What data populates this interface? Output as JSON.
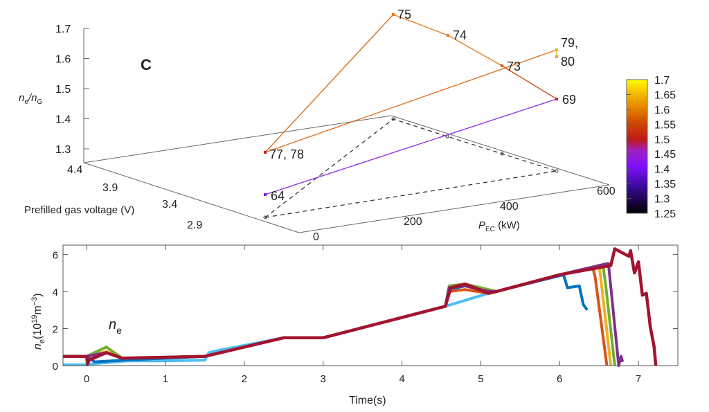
{
  "chart_data": [
    {
      "type": "scatter3d",
      "panel_label": "C",
      "zlabel": {
        "main": "n",
        "sub1": "e",
        "slash": "/n",
        "sub2": "G"
      },
      "xlabel": {
        "main": "P",
        "sub": "EC",
        "unit": " (kW)"
      },
      "ylabel": "Prefilled gas voltage (V)",
      "z_ticks": [
        "1.7",
        "1.6",
        "1.5",
        "1.4",
        "1.3"
      ],
      "y_ticks": [
        "4.4",
        "3.9",
        "3.4",
        "2.9"
      ],
      "x_ticks": [
        "0",
        "200",
        "400",
        "600"
      ],
      "points": [
        {
          "label": "75",
          "ne_nG": 1.6,
          "color": "#e07820"
        },
        {
          "label": "74",
          "ne_nG": 1.59,
          "color": "#e07820"
        },
        {
          "label": "73",
          "ne_nG": 1.54,
          "color": "#d85a10"
        },
        {
          "label": "69",
          "ne_nG": 1.49,
          "color": "#c8201c"
        },
        {
          "label": "79,",
          "ne_nG": 1.65,
          "color": "#f0b020"
        },
        {
          "label": "80",
          "ne_nG": 1.63,
          "color": "#f0a020"
        },
        {
          "label": "77, 78",
          "ne_nG": 1.47,
          "color": "#c8201c"
        },
        {
          "label": "64",
          "ne_nG": 1.33,
          "color": "#8020e0"
        }
      ],
      "colorbar": {
        "ticks": [
          "1.7",
          "1.65",
          "1.6",
          "1.55",
          "1.5",
          "1.45",
          "1.4",
          "1.35",
          "1.3",
          "1.25"
        ],
        "range": [
          1.25,
          1.7
        ]
      }
    },
    {
      "type": "line",
      "annotation": {
        "main": "n",
        "sub": "e"
      },
      "xlabel": "Time(s)",
      "ylabel": {
        "main": "n",
        "sub": "e",
        "rest": "(10",
        "sup1": "19",
        "unit": "m",
        "sup2": "−3",
        "close": ")"
      },
      "xlim": [
        -0.3,
        7.5
      ],
      "ylim": [
        0,
        6.5
      ],
      "x_ticks": [
        "0",
        "1",
        "2",
        "3",
        "4",
        "5",
        "6",
        "7"
      ],
      "y_ticks": [
        "0",
        "2",
        "4",
        "6"
      ],
      "series": [
        {
          "name": "light-blue",
          "color": "#4DBEEE",
          "x": [
            -0.3,
            0,
            0.1,
            0.5,
            1.0,
            1.5,
            1.55,
            1.65,
            2.5,
            3.0,
            4.55,
            5.1,
            5.3,
            6.0,
            6.05
          ],
          "y": [
            0.05,
            0.05,
            0.1,
            0.25,
            0.25,
            0.3,
            0.7,
            0.8,
            1.5,
            1.5,
            3.2,
            3.9,
            4.1,
            4.9,
            4.9
          ]
        },
        {
          "name": "blue",
          "color": "#0072BD",
          "x": [
            -0.3,
            0,
            0.1,
            0.5,
            1.0,
            1.5,
            2.5,
            3.0,
            4.55,
            4.6,
            4.8,
            5.1,
            5.2,
            6.05,
            6.1,
            6.25,
            6.3,
            6.35
          ],
          "y": [
            0.5,
            0.5,
            0.2,
            0.3,
            0.4,
            0.5,
            1.5,
            1.5,
            3.2,
            4.1,
            4.3,
            4.0,
            4.0,
            4.9,
            4.2,
            4.3,
            3.3,
            3.0
          ]
        },
        {
          "name": "orange",
          "color": "#D95319",
          "x": [
            -0.3,
            0,
            0.25,
            0.45,
            1.0,
            1.5,
            2.5,
            3.0,
            4.55,
            4.6,
            4.8,
            5.1,
            5.2,
            6.0,
            6.42,
            6.45,
            6.6
          ],
          "y": [
            0.5,
            0.5,
            0.75,
            0.4,
            0.45,
            0.5,
            1.5,
            1.5,
            3.2,
            4.0,
            4.1,
            3.9,
            4.0,
            4.9,
            5.3,
            4.8,
            0
          ]
        },
        {
          "name": "yellow",
          "color": "#EDB120",
          "x": [
            -0.3,
            0,
            0.25,
            0.45,
            1.0,
            1.5,
            2.5,
            3.0,
            4.55,
            4.6,
            4.8,
            5.1,
            5.2,
            6.0,
            6.5,
            6.52,
            6.65
          ],
          "y": [
            0.5,
            0.5,
            0.75,
            0.4,
            0.45,
            0.5,
            1.5,
            1.5,
            3.2,
            4.3,
            4.3,
            4.0,
            4.0,
            4.9,
            5.4,
            4.8,
            0
          ]
        },
        {
          "name": "green",
          "color": "#77AC30",
          "x": [
            -0.3,
            0,
            0.05,
            0.25,
            0.45,
            1.0,
            1.5,
            2.5,
            3.0,
            4.55,
            4.6,
            4.8,
            5.1,
            5.2,
            6.0,
            6.55,
            6.58,
            6.7
          ],
          "y": [
            0.5,
            0.5,
            0.6,
            1.0,
            0.4,
            0.45,
            0.5,
            1.5,
            1.5,
            3.2,
            4.3,
            4.4,
            4.1,
            4.0,
            4.9,
            5.4,
            4.5,
            0
          ]
        },
        {
          "name": "purple",
          "color": "#7E2F8E",
          "x": [
            -0.3,
            0,
            0.25,
            0.45,
            1.0,
            1.5,
            2.5,
            3.0,
            4.55,
            4.6,
            4.8,
            5.1,
            5.2,
            6.0,
            6.6,
            6.62,
            6.75,
            6.78,
            6.8
          ],
          "y": [
            0.5,
            0.5,
            0.7,
            0.4,
            0.45,
            0.5,
            1.5,
            1.5,
            3.2,
            4.2,
            4.3,
            4.0,
            4.0,
            4.9,
            5.5,
            5.5,
            0,
            0.5,
            0.2
          ]
        },
        {
          "name": "dark-red",
          "color": "#A2142F",
          "x": [
            -0.3,
            0,
            0.01,
            0.03,
            0.25,
            0.45,
            1.0,
            1.5,
            2.5,
            3.0,
            4.55,
            4.62,
            4.8,
            5.1,
            5.2,
            6.0,
            6.65,
            6.7,
            6.88,
            6.9,
            6.95,
            7.0,
            7.05,
            7.1,
            7.15,
            7.2,
            7.22
          ],
          "y": [
            0.5,
            0.5,
            0.05,
            0.3,
            0.7,
            0.4,
            0.45,
            0.5,
            1.5,
            1.5,
            3.2,
            4.2,
            4.4,
            3.9,
            4.0,
            4.9,
            5.4,
            6.3,
            5.9,
            6.2,
            5.0,
            5.6,
            3.8,
            3.9,
            2.1,
            1.0,
            0
          ]
        }
      ]
    }
  ]
}
